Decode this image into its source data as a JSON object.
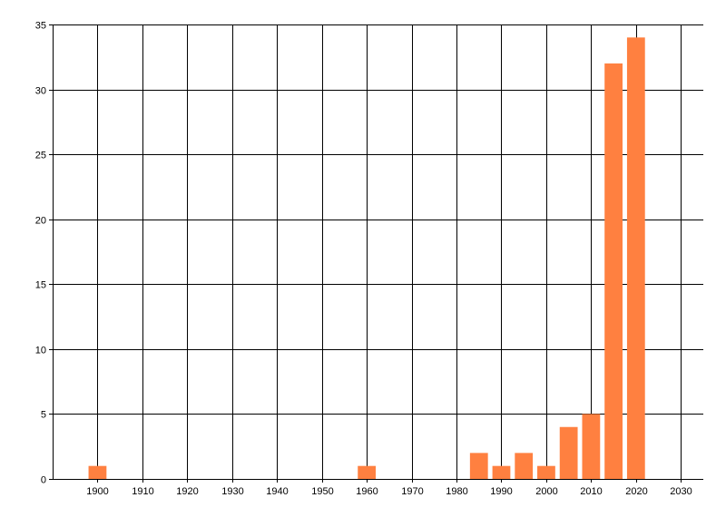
{
  "chart_data": {
    "type": "bar",
    "x": [
      1900,
      1960,
      1985,
      1990,
      1995,
      2000,
      2005,
      2010,
      2015,
      2020
    ],
    "values": [
      1,
      1,
      2,
      1,
      2,
      1,
      4,
      5,
      32,
      34
    ],
    "bar_width_years": 4,
    "xlim": [
      1890,
      2035
    ],
    "ylim": [
      0,
      35
    ],
    "xticks": [
      1900,
      1910,
      1920,
      1930,
      1940,
      1950,
      1960,
      1970,
      1980,
      1990,
      2000,
      2010,
      2020,
      2030
    ],
    "yticks": [
      0,
      5,
      10,
      15,
      20,
      25,
      30,
      35
    ],
    "title": "",
    "xlabel": "",
    "ylabel": "",
    "grid": true,
    "colors": {
      "bar": "#FF8040",
      "grid": "#000000"
    }
  }
}
